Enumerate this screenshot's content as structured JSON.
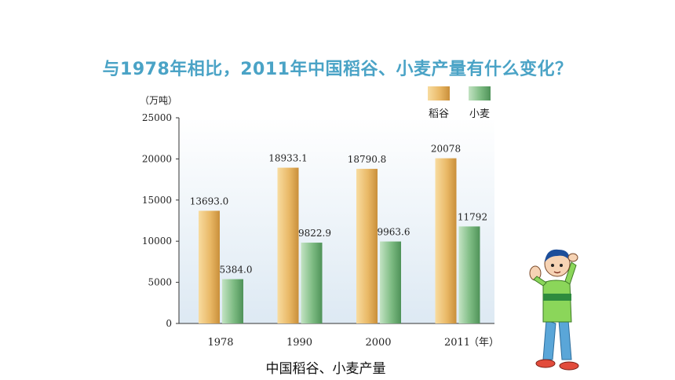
{
  "question": "与1978年相比，2011年中国稻谷、小麦产量有什么变化？",
  "caption": "中国稻谷、小麦产量",
  "chart_data": {
    "type": "bar",
    "title": "",
    "ylabel": "（万吨）",
    "xlabel": "（年）",
    "categories": [
      "1978",
      "1990",
      "2000",
      "2011"
    ],
    "ylim": [
      0,
      25000
    ],
    "yticks": [
      "0",
      "5000",
      "10000",
      "15000",
      "20000",
      "25000"
    ],
    "legend_position": "top-right",
    "series": [
      {
        "name": "稻谷",
        "values": [
          13693.0,
          18933.1,
          18790.8,
          20078
        ],
        "labels": [
          "13693.0",
          "18933.1",
          "18790.8",
          "20078"
        ],
        "color": "#e6b45c"
      },
      {
        "name": "小麦",
        "values": [
          5384.0,
          9822.9,
          9963.6,
          11792
        ],
        "labels": [
          "5384.0",
          "9822.9",
          "9963.6",
          "11792"
        ],
        "color": "#72b27a"
      }
    ]
  }
}
